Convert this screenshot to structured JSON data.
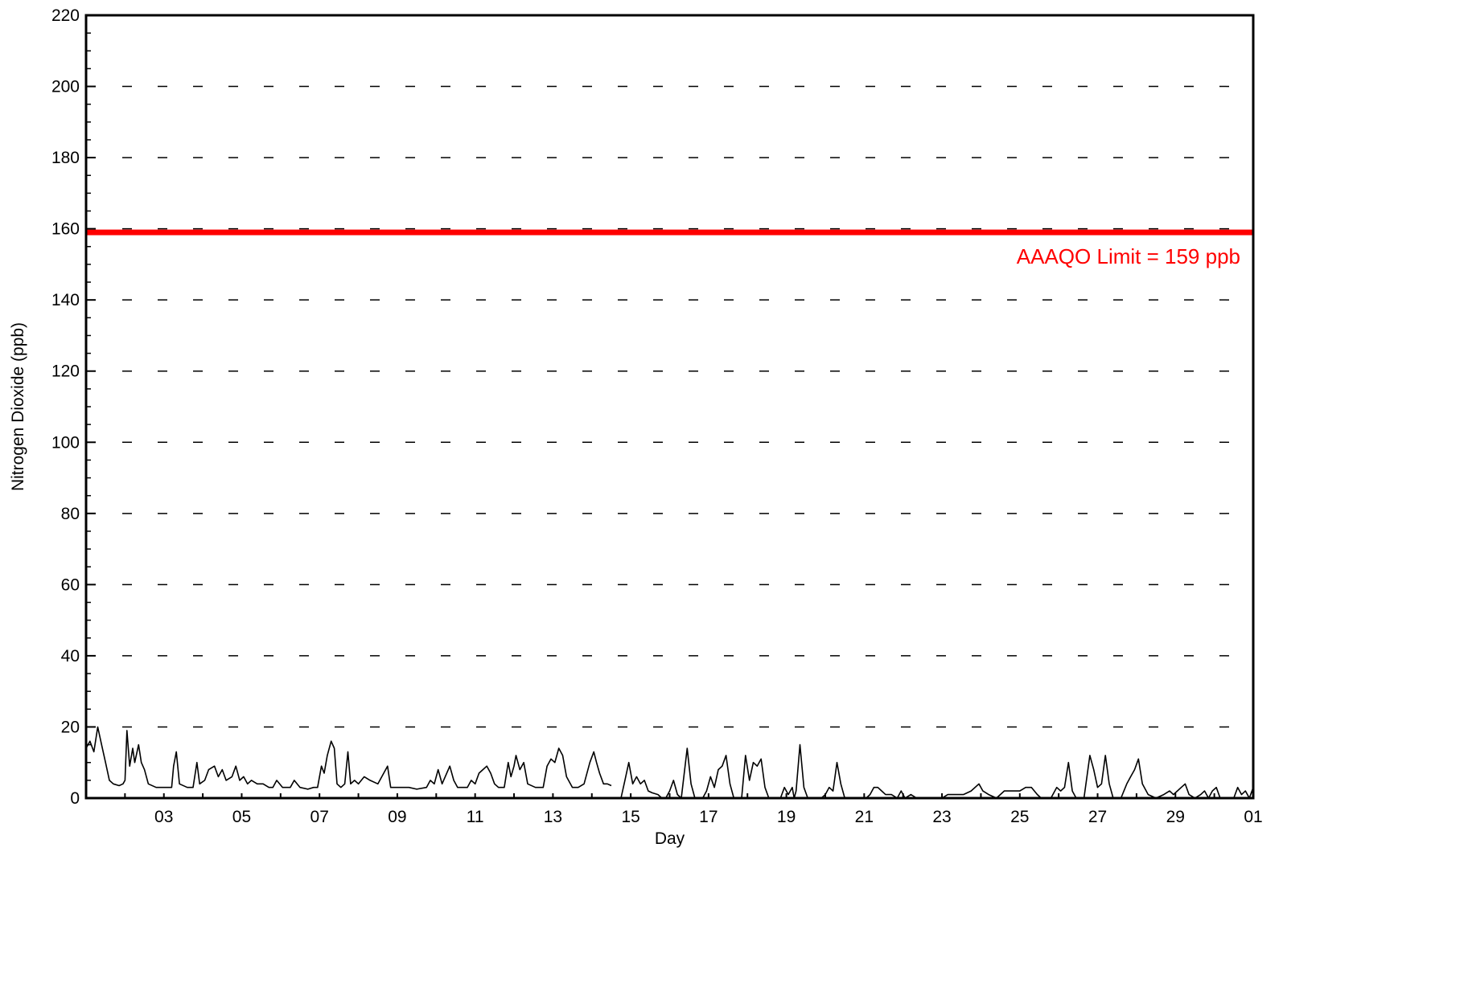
{
  "chart_data": {
    "type": "line",
    "title": "",
    "xlabel": "Day",
    "ylabel": "Nitrogen Dioxide (ppb)",
    "ylim": [
      0,
      220
    ],
    "xlim_days": [
      1,
      31
    ],
    "y_ticks": [
      0,
      20,
      40,
      60,
      80,
      100,
      120,
      140,
      160,
      180,
      200,
      220
    ],
    "x_tick_labels": [
      {
        "day": 3,
        "label": "03"
      },
      {
        "day": 5,
        "label": "05"
      },
      {
        "day": 7,
        "label": "07"
      },
      {
        "day": 9,
        "label": "09"
      },
      {
        "day": 11,
        "label": "11"
      },
      {
        "day": 13,
        "label": "13"
      },
      {
        "day": 15,
        "label": "15"
      },
      {
        "day": 17,
        "label": "17"
      },
      {
        "day": 19,
        "label": "19"
      },
      {
        "day": 21,
        "label": "21"
      },
      {
        "day": 23,
        "label": "23"
      },
      {
        "day": 25,
        "label": "25"
      },
      {
        "day": 27,
        "label": "27"
      },
      {
        "day": 29,
        "label": "29"
      },
      {
        "day": 31,
        "label": "01"
      }
    ],
    "grid": "horizontal dashed",
    "colors": {
      "series": "#000000",
      "limit": "#ff0000"
    },
    "limit": {
      "value": 159,
      "label": "AAAQO Limit = 159 ppb"
    },
    "series": [
      {
        "segments": [
          [
            [
              1.0,
              14
            ],
            [
              1.1,
              16
            ],
            [
              1.2,
              13
            ],
            [
              1.3,
              20
            ],
            [
              1.4,
              15
            ],
            [
              1.5,
              10
            ],
            [
              1.6,
              5
            ],
            [
              1.7,
              4
            ],
            [
              1.85,
              3.5
            ],
            [
              1.95,
              4
            ],
            [
              2.0,
              5
            ],
            [
              2.05,
              19
            ],
            [
              2.12,
              9
            ],
            [
              2.2,
              14
            ],
            [
              2.25,
              10
            ],
            [
              2.35,
              15
            ],
            [
              2.42,
              10
            ],
            [
              2.5,
              8
            ],
            [
              2.6,
              4
            ],
            [
              2.8,
              3
            ],
            [
              3.0,
              3
            ],
            [
              3.2,
              3
            ],
            [
              3.25,
              9
            ],
            [
              3.32,
              13
            ],
            [
              3.4,
              4
            ],
            [
              3.6,
              3
            ],
            [
              3.75,
              3
            ],
            [
              3.85,
              10
            ],
            [
              3.92,
              4
            ],
            [
              4.05,
              5
            ],
            [
              4.15,
              8
            ],
            [
              4.3,
              9
            ],
            [
              4.4,
              6
            ],
            [
              4.5,
              8
            ],
            [
              4.6,
              5
            ],
            [
              4.75,
              6
            ],
            [
              4.85,
              9
            ],
            [
              4.95,
              5
            ],
            [
              5.05,
              6
            ],
            [
              5.15,
              4
            ],
            [
              5.25,
              5
            ],
            [
              5.4,
              4
            ],
            [
              5.55,
              4
            ],
            [
              5.7,
              3
            ],
            [
              5.8,
              3
            ],
            [
              5.9,
              5
            ],
            [
              6.05,
              3
            ],
            [
              6.25,
              3
            ],
            [
              6.35,
              5
            ],
            [
              6.5,
              3
            ],
            [
              6.7,
              2.5
            ],
            [
              6.85,
              3
            ],
            [
              6.95,
              3
            ],
            [
              7.05,
              9
            ],
            [
              7.12,
              7
            ],
            [
              7.2,
              12
            ],
            [
              7.3,
              16
            ],
            [
              7.38,
              14
            ],
            [
              7.45,
              4
            ],
            [
              7.55,
              3
            ],
            [
              7.65,
              4
            ],
            [
              7.73,
              13
            ],
            [
              7.8,
              4
            ],
            [
              7.9,
              5
            ],
            [
              8.0,
              4
            ],
            [
              8.15,
              6
            ],
            [
              8.3,
              5
            ],
            [
              8.5,
              4
            ],
            [
              8.75,
              9
            ],
            [
              8.83,
              3
            ],
            [
              9.05,
              3
            ],
            [
              9.3,
              3
            ],
            [
              9.5,
              2.5
            ],
            [
              9.75,
              3
            ],
            [
              9.85,
              5
            ],
            [
              9.95,
              4
            ],
            [
              10.05,
              8
            ],
            [
              10.15,
              4
            ],
            [
              10.35,
              9
            ],
            [
              10.45,
              5
            ],
            [
              10.55,
              3
            ],
            [
              10.8,
              3
            ],
            [
              10.9,
              5
            ],
            [
              11.0,
              4
            ],
            [
              11.1,
              7
            ],
            [
              11.2,
              8
            ],
            [
              11.3,
              9
            ],
            [
              11.4,
              7
            ],
            [
              11.5,
              4
            ],
            [
              11.6,
              3
            ],
            [
              11.75,
              3
            ],
            [
              11.85,
              10
            ],
            [
              11.92,
              6
            ],
            [
              12.0,
              9
            ],
            [
              12.05,
              12
            ],
            [
              12.15,
              8
            ],
            [
              12.25,
              10
            ],
            [
              12.35,
              4
            ],
            [
              12.55,
              3
            ],
            [
              12.75,
              3
            ],
            [
              12.85,
              9
            ],
            [
              12.95,
              11
            ],
            [
              13.05,
              10
            ],
            [
              13.15,
              14
            ],
            [
              13.25,
              12
            ],
            [
              13.35,
              6
            ],
            [
              13.5,
              3
            ],
            [
              13.65,
              3
            ],
            [
              13.8,
              4
            ],
            [
              13.95,
              10
            ],
            [
              14.05,
              13
            ],
            [
              14.12,
              10
            ],
            [
              14.2,
              7
            ],
            [
              14.3,
              4
            ],
            [
              14.4,
              4
            ],
            [
              14.5,
              3.5
            ]
          ],
          [
            [
              14.75,
              0
            ],
            [
              14.85,
              5
            ],
            [
              14.95,
              10
            ],
            [
              15.05,
              4
            ],
            [
              15.15,
              6
            ],
            [
              15.25,
              4
            ],
            [
              15.35,
              5
            ],
            [
              15.45,
              2
            ],
            [
              15.55,
              1.5
            ],
            [
              15.7,
              1
            ],
            [
              15.8,
              0
            ],
            [
              15.9,
              0
            ],
            [
              16.0,
              2
            ],
            [
              16.1,
              5
            ],
            [
              16.2,
              1
            ],
            [
              16.3,
              0
            ],
            [
              16.45,
              14
            ],
            [
              16.55,
              4
            ],
            [
              16.65,
              0
            ]
          ],
          [
            [
              16.85,
              0
            ],
            [
              16.95,
              2
            ],
            [
              17.05,
              6
            ],
            [
              17.15,
              3
            ],
            [
              17.25,
              8
            ],
            [
              17.35,
              9
            ],
            [
              17.45,
              12
            ],
            [
              17.55,
              4
            ],
            [
              17.65,
              0
            ]
          ],
          [
            [
              17.85,
              0
            ],
            [
              17.95,
              12
            ],
            [
              18.05,
              5
            ],
            [
              18.15,
              10
            ],
            [
              18.25,
              9
            ],
            [
              18.35,
              11
            ],
            [
              18.45,
              3
            ],
            [
              18.55,
              0
            ],
            [
              18.85,
              0
            ],
            [
              18.95,
              3
            ],
            [
              19.05,
              1
            ],
            [
              19.15,
              3
            ],
            [
              19.2,
              0
            ],
            [
              19.25,
              2
            ],
            [
              19.35,
              15
            ],
            [
              19.45,
              3
            ],
            [
              19.55,
              0
            ]
          ],
          [
            [
              19.9,
              0
            ],
            [
              20.0,
              1
            ],
            [
              20.1,
              3
            ],
            [
              20.2,
              2
            ],
            [
              20.3,
              10
            ],
            [
              20.4,
              4
            ],
            [
              20.5,
              0
            ]
          ],
          [
            [
              20.85,
              0
            ],
            [
              21.05,
              0
            ],
            [
              21.15,
              1
            ],
            [
              21.25,
              3
            ],
            [
              21.35,
              3
            ],
            [
              21.45,
              2
            ],
            [
              21.55,
              1
            ],
            [
              21.7,
              1
            ],
            [
              21.85,
              0
            ],
            [
              21.95,
              2
            ],
            [
              22.05,
              0
            ],
            [
              22.2,
              1
            ],
            [
              22.35,
              0
            ],
            [
              23.0,
              0
            ],
            [
              23.15,
              1
            ],
            [
              23.35,
              1
            ],
            [
              23.55,
              1
            ],
            [
              23.75,
              2
            ],
            [
              23.95,
              4
            ],
            [
              24.05,
              2
            ],
            [
              24.2,
              1
            ],
            [
              24.4,
              0
            ],
            [
              24.6,
              2
            ],
            [
              24.8,
              2
            ],
            [
              25.0,
              2
            ],
            [
              25.15,
              3
            ],
            [
              25.3,
              3
            ],
            [
              25.45,
              1
            ],
            [
              25.55,
              0
            ],
            [
              25.8,
              0
            ],
            [
              25.95,
              3
            ],
            [
              26.05,
              2
            ],
            [
              26.15,
              3
            ],
            [
              26.25,
              10
            ],
            [
              26.35,
              2
            ],
            [
              26.45,
              0
            ],
            [
              26.65,
              0
            ],
            [
              26.8,
              12
            ],
            [
              26.9,
              8
            ],
            [
              27.0,
              3
            ],
            [
              27.1,
              4
            ],
            [
              27.2,
              12
            ],
            [
              27.3,
              4
            ],
            [
              27.4,
              0
            ],
            [
              27.6,
              0
            ],
            [
              27.75,
              4
            ],
            [
              27.85,
              6
            ],
            [
              27.95,
              8
            ],
            [
              28.05,
              11
            ],
            [
              28.15,
              4
            ],
            [
              28.3,
              1
            ],
            [
              28.5,
              0
            ],
            [
              28.7,
              1
            ],
            [
              28.85,
              2
            ],
            [
              28.95,
              1
            ],
            [
              29.05,
              2
            ],
            [
              29.15,
              3
            ],
            [
              29.25,
              4
            ],
            [
              29.35,
              1
            ],
            [
              29.5,
              0
            ],
            [
              29.65,
              1
            ],
            [
              29.75,
              2
            ],
            [
              29.85,
              0
            ],
            [
              29.95,
              2
            ],
            [
              30.05,
              3
            ],
            [
              30.15,
              0
            ],
            [
              30.5,
              0
            ],
            [
              30.6,
              3
            ],
            [
              30.7,
              1
            ],
            [
              30.8,
              2
            ],
            [
              30.9,
              0
            ],
            [
              31.0,
              3
            ]
          ]
        ]
      }
    ]
  }
}
